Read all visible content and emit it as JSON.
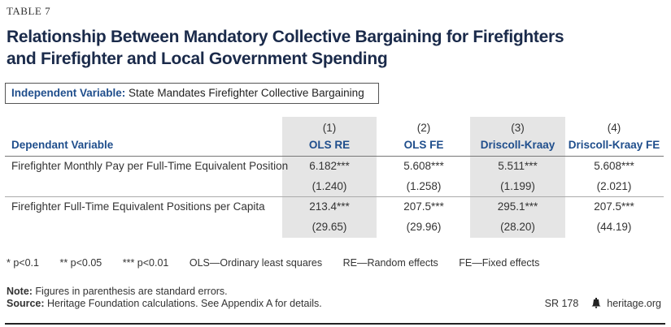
{
  "table_label": "TABLE 7",
  "title_line1": "Relationship Between Mandatory Collective Bargaining for Firefighters",
  "title_line2": "and Firefighter and Local Government Spending",
  "independent": {
    "label": "Independent Variable:",
    "value": "State Mandates Firefighter Collective Bargaining"
  },
  "dependent_header": "Dependant Variable",
  "columns": [
    {
      "num": "(1)",
      "name": "OLS RE"
    },
    {
      "num": "(2)",
      "name": "OLS FE"
    },
    {
      "num": "(3)",
      "name": "Driscoll-Kraay"
    },
    {
      "num": "(4)",
      "name": "Driscoll-Kraay FE"
    }
  ],
  "rows": [
    {
      "label": "Firefighter Monthly Pay per Full-Time Equivalent Position",
      "coef": [
        "6.182***",
        "5.608***",
        "5.511***",
        "5.608***"
      ],
      "se": [
        "(1.240)",
        "(1.258)",
        "(1.199)",
        "(2.021)"
      ]
    },
    {
      "label": "Firefighter Full-Time Equivalent Positions per Capita",
      "coef": [
        "213.4***",
        "207.5***",
        "295.1***",
        "207.5***"
      ],
      "se": [
        "(29.65)",
        "(29.96)",
        "(28.20)",
        "(44.19)"
      ]
    }
  ],
  "legend": [
    "* p<0.1",
    "** p<0.05",
    "*** p<0.01",
    "OLS—Ordinary least squares",
    "RE—Random effects",
    "FE—Fixed effects"
  ],
  "note": {
    "label": "Note:",
    "text": " Figures in parenthesis are standard errors."
  },
  "source": {
    "label": "Source:",
    "text": " Heritage Foundation calculations. See Appendix A for details."
  },
  "report_id": "SR 178",
  "site": "heritage.org",
  "colors": {
    "accent": "#1f4e8c",
    "title": "#1a2a4a",
    "shade": "#e5e5e5"
  }
}
